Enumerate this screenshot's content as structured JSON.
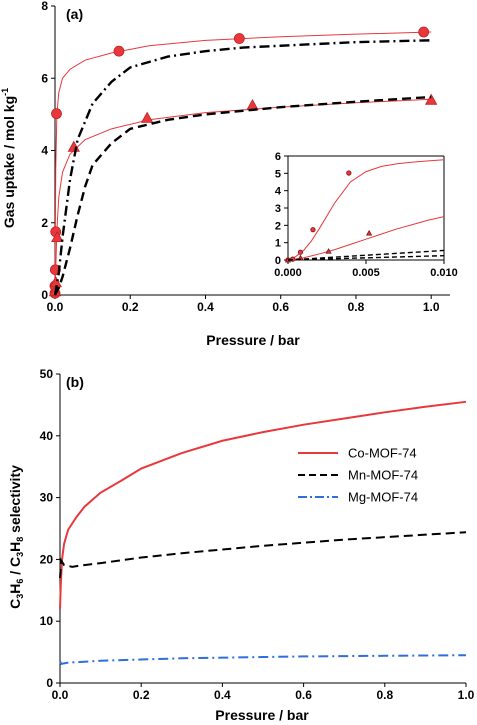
{
  "chart_data": [
    {
      "type": "scatter",
      "panel_label": "(a)",
      "xlabel": "Pressure / bar",
      "ylabel": "Gas uptake / mol kg",
      "ylabel_sup": "-1",
      "xlim": [
        0,
        1.05
      ],
      "ylim": [
        0,
        8
      ],
      "xticks": [
        "0.0",
        "0.2",
        "0.4",
        "0.6",
        "0.8",
        "1.0"
      ],
      "yticks": [
        "0",
        "2",
        "4",
        "6",
        "8"
      ],
      "series": [
        {
          "style": "thin-solid-red",
          "color": "#e8383d",
          "x": [
            0,
            0.002,
            0.005,
            0.01,
            0.02,
            0.04,
            0.08,
            0.15,
            0.25,
            0.4,
            0.6,
            0.8,
            1.0
          ],
          "y": [
            0,
            3.5,
            5.0,
            5.6,
            6.0,
            6.25,
            6.5,
            6.7,
            6.9,
            7.05,
            7.15,
            7.22,
            7.28
          ]
        },
        {
          "style": "red-circle-markers",
          "color": "#e8383d",
          "marker": "circle",
          "x": [
            0.0,
            0.0,
            0.001,
            0.002,
            0.004,
            0.17,
            0.49,
            0.98
          ],
          "y": [
            0.05,
            0.25,
            0.7,
            1.75,
            5.02,
            6.75,
            7.1,
            7.28
          ]
        },
        {
          "style": "thin-solid-red",
          "color": "#e8383d",
          "x": [
            0,
            0.005,
            0.01,
            0.02,
            0.04,
            0.08,
            0.15,
            0.25,
            0.4,
            0.6,
            0.8,
            1.0
          ],
          "y": [
            0,
            1.8,
            2.7,
            3.4,
            3.9,
            4.3,
            4.6,
            4.85,
            5.05,
            5.2,
            5.32,
            5.42
          ]
        },
        {
          "style": "red-triangle-markers",
          "color": "#e8383d",
          "marker": "triangle",
          "x": [
            0.0,
            0.002,
            0.006,
            0.05,
            0.245,
            0.525,
            1.0
          ],
          "y": [
            0.1,
            0.35,
            1.6,
            4.1,
            4.9,
            5.25,
            5.4
          ]
        },
        {
          "style": "black-dash-dot",
          "color": "#000000",
          "x": [
            0,
            0.01,
            0.02,
            0.04,
            0.06,
            0.1,
            0.15,
            0.2,
            0.3,
            0.4,
            0.5,
            0.6,
            0.8,
            1.0
          ],
          "y": [
            0,
            0.6,
            1.6,
            3.2,
            4.3,
            5.3,
            5.9,
            6.3,
            6.6,
            6.75,
            6.85,
            6.9,
            7.0,
            7.05
          ]
        },
        {
          "style": "black-dashed",
          "color": "#000000",
          "x": [
            0,
            0.01,
            0.02,
            0.04,
            0.06,
            0.08,
            0.1,
            0.15,
            0.2,
            0.3,
            0.4,
            0.5,
            0.6,
            0.8,
            1.0
          ],
          "y": [
            0,
            0.2,
            0.5,
            1.3,
            2.2,
            3.0,
            3.6,
            4.2,
            4.6,
            4.85,
            5.0,
            5.1,
            5.2,
            5.35,
            5.48
          ]
        }
      ],
      "inset": {
        "xlim": [
          0,
          0.01
        ],
        "ylim": [
          0,
          6
        ],
        "xticks": [
          "0.000",
          "0.005",
          "0.010"
        ],
        "yticks": [
          "0",
          "1",
          "2",
          "3",
          "4",
          "5",
          "6"
        ],
        "series": [
          {
            "style": "thin-solid-red",
            "color": "#e8383d",
            "x": [
              0,
              0.0005,
              0.001,
              0.0015,
              0.002,
              0.003,
              0.004,
              0.005,
              0.006,
              0.007,
              0.008,
              0.009,
              0.01
            ],
            "y": [
              0,
              0.2,
              0.55,
              1.1,
              1.8,
              3.3,
              4.5,
              5.1,
              5.4,
              5.55,
              5.65,
              5.72,
              5.78
            ]
          },
          {
            "style": "red-circle-markers",
            "color": "#e8383d",
            "marker": "circle",
            "x": [
              0.0,
              0.0003,
              0.0008,
              0.0016,
              0.0039
            ],
            "y": [
              0.0,
              0.05,
              0.45,
              1.75,
              5.02
            ]
          },
          {
            "style": "thin-solid-red",
            "color": "#e8383d",
            "x": [
              0,
              0.001,
              0.002,
              0.003,
              0.004,
              0.005,
              0.006,
              0.007,
              0.008,
              0.009,
              0.01
            ],
            "y": [
              0,
              0.12,
              0.35,
              0.6,
              0.9,
              1.2,
              1.5,
              1.8,
              2.05,
              2.3,
              2.5
            ],
            "note": ""
          },
          {
            "style": "red-triangle-markers",
            "color": "#e8383d",
            "marker": "triangle",
            "x": [
              0.0,
              0.0008,
              0.0026,
              0.0052
            ],
            "y": [
              0.0,
              0.12,
              0.5,
              1.55
            ]
          },
          {
            "style": "black-dash-dot",
            "color": "#000000",
            "x": [
              0,
              0.01
            ],
            "y": [
              0,
              0.55
            ]
          },
          {
            "style": "black-dashed",
            "color": "#000000",
            "x": [
              0,
              0.01
            ],
            "y": [
              0,
              0.25
            ]
          }
        ]
      }
    },
    {
      "type": "line",
      "panel_label": "(b)",
      "xlabel": "Pressure / bar",
      "ylabel": "C3H6 / C3H8 selectivity",
      "xlim": [
        0,
        1.0
      ],
      "ylim": [
        0,
        50
      ],
      "xticks": [
        "0.0",
        "0.2",
        "0.4",
        "0.6",
        "0.8",
        "1.0"
      ],
      "yticks": [
        "0",
        "10",
        "20",
        "30",
        "40",
        "50"
      ],
      "legend_position": "right",
      "series": [
        {
          "name": "Co-MOF-74",
          "color": "#e8383d",
          "style": "solid",
          "x": [
            0,
            0.002,
            0.005,
            0.01,
            0.02,
            0.04,
            0.06,
            0.1,
            0.15,
            0.2,
            0.3,
            0.4,
            0.5,
            0.6,
            0.7,
            0.8,
            0.9,
            1.0
          ],
          "y": [
            12,
            16,
            20,
            22.5,
            24.8,
            26.8,
            28.5,
            30.8,
            32.7,
            34.7,
            37.2,
            39.2,
            40.6,
            41.8,
            42.8,
            43.8,
            44.7,
            45.5
          ]
        },
        {
          "name": "Mn-MOF-74",
          "color": "#000000",
          "style": "dashed",
          "x": [
            0,
            0.003,
            0.01,
            0.03,
            0.05,
            0.1,
            0.2,
            0.3,
            0.4,
            0.5,
            0.6,
            0.7,
            0.8,
            0.9,
            1.0
          ],
          "y": [
            17,
            19.8,
            19.1,
            18.8,
            19.0,
            19.4,
            20.3,
            21.0,
            21.6,
            22.2,
            22.7,
            23.2,
            23.6,
            24.0,
            24.4
          ]
        },
        {
          "name": "Mg-MOF-74",
          "color": "#2f6fdc",
          "style": "dashdot",
          "x": [
            0,
            0.003,
            0.02,
            0.05,
            0.1,
            0.2,
            0.3,
            0.4,
            0.5,
            0.6,
            0.7,
            0.8,
            0.9,
            1.0
          ],
          "y": [
            3.5,
            3.1,
            3.3,
            3.4,
            3.6,
            3.8,
            4.0,
            4.1,
            4.2,
            4.3,
            4.35,
            4.4,
            4.45,
            4.5
          ]
        }
      ]
    }
  ]
}
